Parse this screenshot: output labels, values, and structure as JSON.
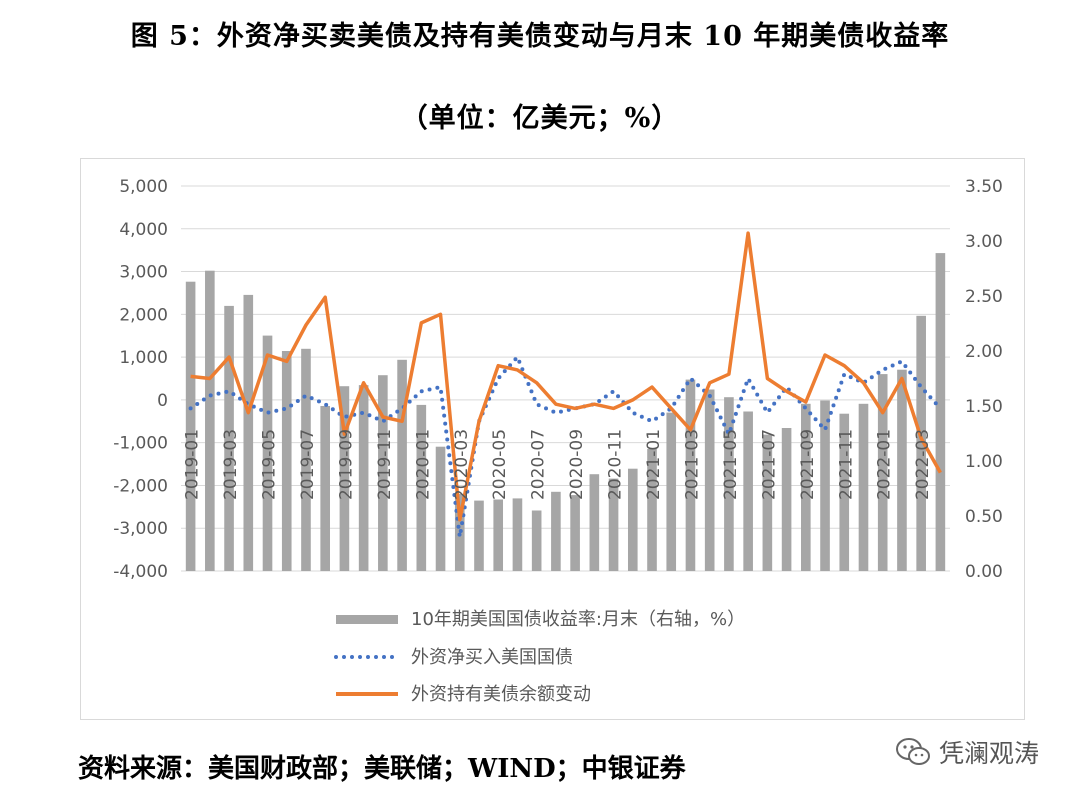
{
  "title_line1": "图 5：外资净买卖美债及持有美债变动与月末 10 年期美债收益率",
  "title_line2": "（单位：亿美元；%）",
  "source": "资料来源：美国财政部；美联储；WIND；中银证券",
  "watermark": "凭澜观涛",
  "chart_data": {
    "type": "bar",
    "title": "",
    "x": [
      "2019-01",
      "2019-02",
      "2019-03",
      "2019-04",
      "2019-05",
      "2019-06",
      "2019-07",
      "2019-08",
      "2019-09",
      "2019-10",
      "2019-11",
      "2019-12",
      "2020-01",
      "2020-02",
      "2020-03",
      "2020-04",
      "2020-05",
      "2020-06",
      "2020-07",
      "2020-08",
      "2020-09",
      "2020-10",
      "2020-11",
      "2020-12",
      "2021-01",
      "2021-02",
      "2021-03",
      "2021-04",
      "2021-05",
      "2021-06",
      "2021-07",
      "2021-08",
      "2021-09",
      "2021-10",
      "2021-11",
      "2021-12",
      "2022-01",
      "2022-02",
      "2022-03",
      "2022-04"
    ],
    "x_tick_labels": [
      "2019-01",
      "2019-03",
      "2019-05",
      "2019-07",
      "2019-09",
      "2019-11",
      "2020-01",
      "2020-03",
      "2020-05",
      "2020-07",
      "2020-09",
      "2020-11",
      "2021-01",
      "2021-03",
      "2021-05",
      "2021-07",
      "2021-09",
      "2021-11",
      "2022-01",
      "2022-03"
    ],
    "left_axis": {
      "ylim": [
        -4000,
        5000
      ],
      "ticks": [
        "5,000",
        "4,000",
        "3,000",
        "2,000",
        "1,000",
        "0",
        "-1,000",
        "-2,000",
        "-3,000",
        "-4,000"
      ]
    },
    "right_axis": {
      "ylim": [
        0,
        3.5
      ],
      "ticks": [
        "3.50",
        "3.00",
        "2.50",
        "2.00",
        "1.50",
        "1.00",
        "0.50",
        "0.00"
      ]
    },
    "legend_placement": "bottom",
    "grid": true,
    "series": [
      {
        "name": "10年期美国国债收益率:月末（右轴，%）",
        "type": "bar",
        "axis": "right",
        "color": "#a6a6a6",
        "values": [
          2.63,
          2.73,
          2.41,
          2.51,
          2.14,
          2.0,
          2.02,
          1.5,
          1.68,
          1.69,
          1.78,
          1.92,
          1.51,
          1.13,
          0.7,
          0.64,
          0.65,
          0.66,
          0.55,
          0.72,
          0.69,
          0.88,
          0.84,
          0.93,
          1.11,
          1.44,
          1.74,
          1.65,
          1.58,
          1.45,
          1.24,
          1.3,
          1.52,
          1.55,
          1.43,
          1.52,
          1.79,
          1.83,
          2.32,
          2.89
        ]
      },
      {
        "name": "外资净买入美国国债",
        "type": "line",
        "style": "dotted",
        "axis": "left",
        "color": "#4472c4",
        "values": [
          -200,
          100,
          200,
          -100,
          -300,
          -200,
          100,
          -100,
          -400,
          -300,
          -500,
          -200,
          200,
          300,
          -3200,
          -500,
          500,
          1000,
          -100,
          -300,
          -200,
          -100,
          200,
          -300,
          -500,
          -200,
          500,
          100,
          -800,
          500,
          -300,
          300,
          -200,
          -700,
          600,
          400,
          700,
          900,
          300,
          -200
        ]
      },
      {
        "name": "外资持有美债余额变动",
        "type": "line",
        "style": "solid",
        "axis": "left",
        "color": "#ed7d31",
        "values": [
          550,
          500,
          1000,
          -300,
          1050,
          900,
          1750,
          2400,
          -800,
          400,
          -400,
          -500,
          1800,
          2000,
          -2800,
          -500,
          800,
          700,
          400,
          -100,
          -200,
          -100,
          -200,
          0,
          300,
          -200,
          -700,
          400,
          600,
          3900,
          500,
          200,
          -50,
          1050,
          800,
          400,
          -300,
          500,
          -900,
          -1700
        ]
      }
    ]
  }
}
